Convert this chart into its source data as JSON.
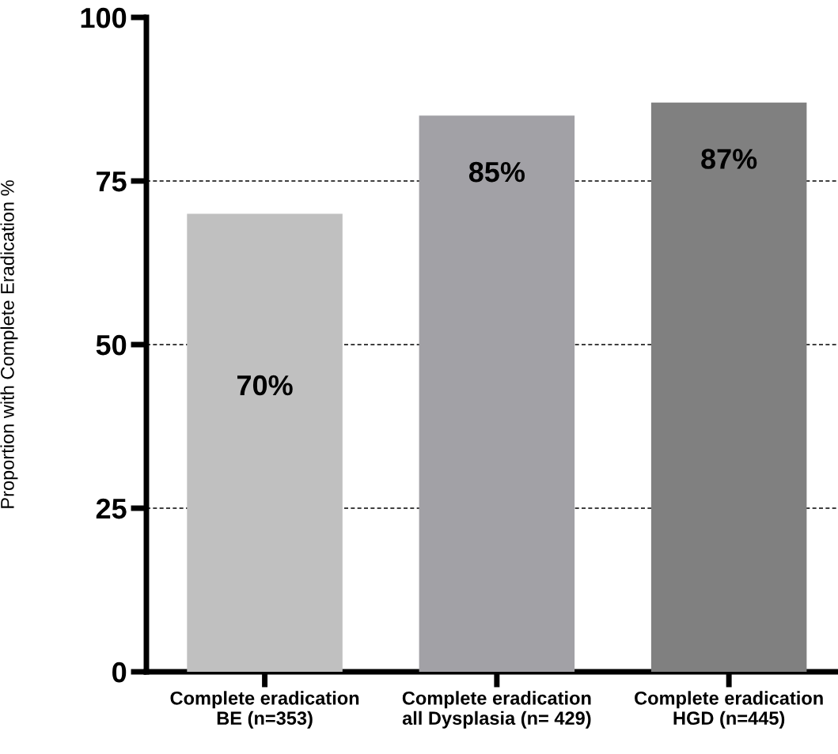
{
  "chart_data": {
    "type": "bar",
    "ylabel": "Proportion with Complete Eradication %",
    "categories": [
      "Complete eradication\nBE (n=353)",
      "Complete eradication\nall Dysplasia (n= 429)",
      "Complete eradication\nHGD (n=445)"
    ],
    "values": [
      70,
      85,
      87
    ],
    "value_labels": [
      "70%",
      "85%",
      "87%"
    ],
    "colors": [
      "#c0c0c0",
      "#a2a1a6",
      "#808080"
    ],
    "ylim": [
      0,
      100
    ],
    "yticks": [
      0,
      25,
      50,
      75,
      100
    ],
    "grid": "y"
  }
}
